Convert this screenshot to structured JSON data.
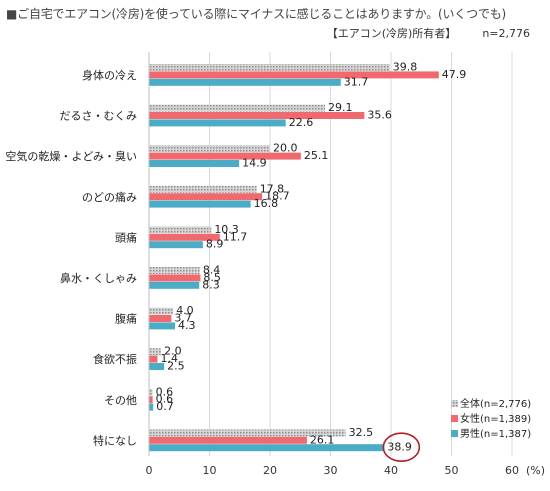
{
  "header": {
    "title": "■ご自宅でエアコン(冷房)を使っている際にマイナスに感じることはありますか。(いくつでも)",
    "subtitle_group": "【エアコン(冷房)所有者】",
    "subtitle_n": "n=2,776"
  },
  "chart_data": {
    "type": "bar",
    "orientation": "horizontal",
    "categories": [
      "身体の冷え",
      "だるさ・むくみ",
      "空気の乾燥・よどみ・臭い",
      "のどの痛み",
      "頭痛",
      "鼻水・くしゃみ",
      "腹痛",
      "食欲不振",
      "その他",
      "特になし"
    ],
    "series": [
      {
        "name": "全体(n=2,776)",
        "values": [
          39.8,
          29.1,
          20.0,
          17.8,
          10.3,
          8.4,
          4.0,
          2.0,
          0.6,
          32.5
        ],
        "labels": [
          "39.8",
          "29.1",
          "20.0",
          "17.8",
          "10.3",
          "8.4",
          "4.0",
          "2.0",
          "0.6",
          "32.5"
        ],
        "color": "#b8b8b8",
        "pattern": "dots"
      },
      {
        "name": "女性(n=1,389)",
        "values": [
          47.9,
          35.6,
          25.1,
          18.7,
          11.7,
          8.5,
          3.7,
          1.4,
          0.6,
          26.1
        ],
        "labels": [
          "47.9",
          "35.6",
          "25.1",
          "18.7",
          "11.7",
          "8.5",
          "3.7",
          "1.4",
          "0.6",
          "26.1"
        ],
        "color": "#f0696f"
      },
      {
        "name": "男性(n=1,387)",
        "values": [
          31.7,
          22.6,
          14.9,
          16.8,
          8.9,
          8.3,
          4.3,
          2.5,
          0.7,
          38.9
        ],
        "labels": [
          "31.7",
          "22.6",
          "14.9",
          "16.8",
          "8.9",
          "8.3",
          "4.3",
          "2.5",
          "0.7",
          "38.9"
        ],
        "color": "#4bacc6"
      }
    ],
    "xlim": [
      0,
      60
    ],
    "xticks": [
      "0",
      "10",
      "20",
      "30",
      "40",
      "50",
      "60"
    ],
    "xunit": "(%)",
    "grid": true,
    "legend_position": "bottom-right",
    "highlight": {
      "category": "特になし",
      "series": "男性(n=1,387)",
      "style": "circle",
      "color": "#b0202a"
    }
  }
}
